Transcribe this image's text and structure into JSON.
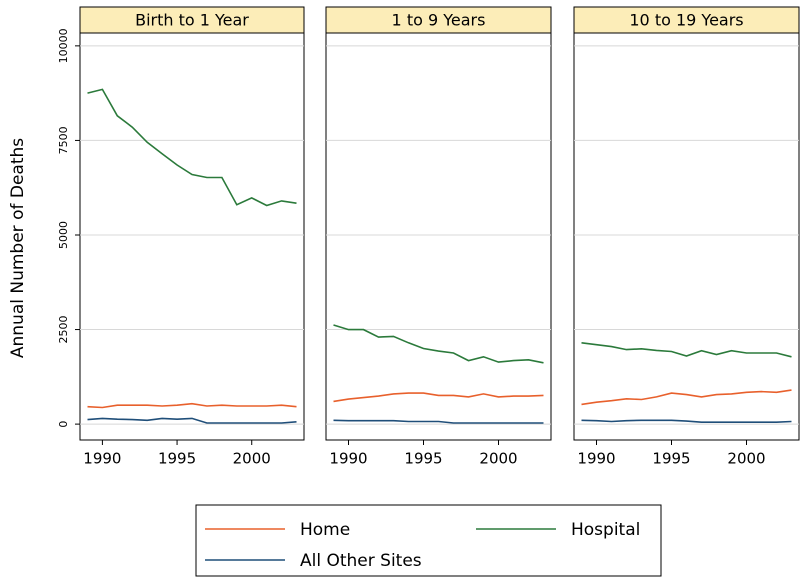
{
  "chart_data": [
    {
      "type": "line",
      "title": "Birth to 1 Year",
      "ylabel": "Annual Number of Deaths",
      "x": [
        1989,
        1990,
        1991,
        1992,
        1993,
        1994,
        1995,
        1996,
        1997,
        1998,
        1999,
        2000,
        2001,
        2002,
        2003
      ],
      "xlim": [
        1988.5,
        2003.5
      ],
      "xticks": [
        1990,
        1995,
        2000
      ],
      "ylim": [
        -420,
        10340
      ],
      "yticks": [
        0,
        2500,
        5000,
        7500,
        10000
      ],
      "grid": true,
      "series": [
        {
          "name": "Home",
          "color": "#e8602c",
          "values": [
            460,
            440,
            500,
            500,
            500,
            480,
            500,
            540,
            480,
            500,
            480,
            480,
            480,
            500,
            460
          ]
        },
        {
          "name": "Hospital",
          "color": "#2b7a3b",
          "values": [
            8750,
            8850,
            8150,
            7850,
            7450,
            7150,
            6850,
            6600,
            6520,
            6520,
            5800,
            5980,
            5780,
            5900,
            5840
          ]
        },
        {
          "name": "All Other Sites",
          "color": "#1f4e79",
          "values": [
            120,
            150,
            130,
            120,
            100,
            150,
            130,
            150,
            30,
            30,
            30,
            30,
            30,
            30,
            60
          ]
        }
      ]
    },
    {
      "type": "line",
      "title": "1 to 9 Years",
      "x": [
        1989,
        1990,
        1991,
        1992,
        1993,
        1994,
        1995,
        1996,
        1997,
        1998,
        1999,
        2000,
        2001,
        2002,
        2003
      ],
      "xlim": [
        1988.5,
        2003.5
      ],
      "xticks": [
        1990,
        1995,
        2000
      ],
      "ylim": [
        -420,
        10340
      ],
      "grid": true,
      "series": [
        {
          "color": "#e8602c",
          "values": [
            600,
            660,
            700,
            740,
            800,
            820,
            820,
            760,
            760,
            720,
            800,
            720,
            740,
            740,
            760
          ]
        },
        {
          "color": "#2b7a3b",
          "values": [
            2620,
            2500,
            2500,
            2300,
            2320,
            2150,
            2000,
            1930,
            1880,
            1680,
            1780,
            1640,
            1680,
            1700,
            1620
          ]
        },
        {
          "color": "#1f4e79",
          "values": [
            100,
            90,
            90,
            90,
            90,
            70,
            70,
            70,
            30,
            30,
            30,
            30,
            30,
            30,
            30
          ]
        }
      ]
    },
    {
      "type": "line",
      "title": "10 to 19 Years",
      "x": [
        1989,
        1990,
        1991,
        1992,
        1993,
        1994,
        1995,
        1996,
        1997,
        1998,
        1999,
        2000,
        2001,
        2002,
        2003
      ],
      "xlim": [
        1988.5,
        2003.5
      ],
      "xticks": [
        1990,
        1995,
        2000
      ],
      "ylim": [
        -420,
        10340
      ],
      "grid": true,
      "series": [
        {
          "color": "#e8602c",
          "values": [
            520,
            580,
            620,
            670,
            650,
            720,
            820,
            780,
            720,
            780,
            800,
            840,
            860,
            840,
            900
          ]
        },
        {
          "color": "#2b7a3b",
          "values": [
            2150,
            2100,
            2050,
            1970,
            1990,
            1950,
            1920,
            1800,
            1940,
            1840,
            1940,
            1880,
            1880,
            1880,
            1780
          ]
        },
        {
          "color": "#1f4e79",
          "values": [
            100,
            90,
            70,
            90,
            100,
            100,
            100,
            80,
            50,
            50,
            50,
            50,
            50,
            50,
            70
          ]
        }
      ]
    }
  ]
}
